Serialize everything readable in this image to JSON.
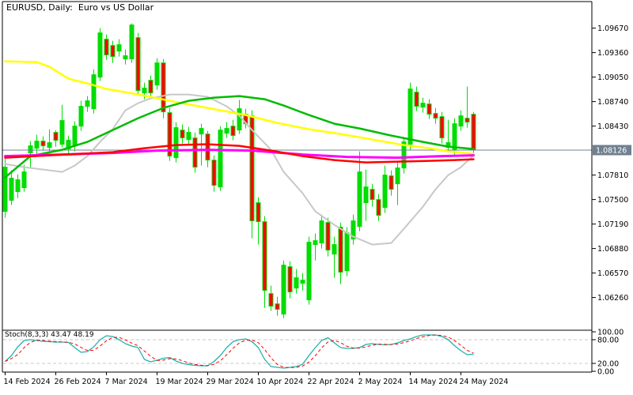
{
  "window": {
    "title": "EURUSD, Daily:  Euro vs US Dollar"
  },
  "colors": {
    "background": "#ffffff",
    "frame": "#000000",
    "bull_candle": "#00DD00",
    "bear_fill": "#FF0000",
    "candle_border": "#00DD00",
    "ma_yellow": "#FFFF00",
    "ma_green": "#00BB00",
    "ma_gray": "#C8C8C8",
    "ma_magenta": "#FF00FF",
    "ma_red": "#FF0000",
    "current_price_line": "#708090",
    "price_box_bg": "#708090",
    "price_box_text": "#FFFFFF",
    "stoch_k": "#20B2AA",
    "stoch_d": "#FF0000",
    "stoch_level_dash": "#C8C8C8",
    "axis_text": "#000000"
  },
  "chart_data": {
    "type": "candlestick",
    "symbol": "EURUSD",
    "timeframe": "Daily",
    "description": "Euro vs US Dollar",
    "current_price": 1.08126,
    "current_price_label": "1.08126",
    "ylim": [
      1.06,
      1.0975
    ],
    "price_axis_ticks": [
      {
        "label": "1.09670",
        "price": 1.0967
      },
      {
        "label": "1.09360",
        "price": 1.0936
      },
      {
        "label": "1.09050",
        "price": 1.0905
      },
      {
        "label": "1.08740",
        "price": 1.0874
      },
      {
        "label": "1.08430",
        "price": 1.0843
      },
      {
        "label": "1.07810",
        "price": 1.0781
      },
      {
        "label": "1.07500",
        "price": 1.075
      },
      {
        "label": "1.07190",
        "price": 1.0719
      },
      {
        "label": "1.06880",
        "price": 1.0688
      },
      {
        "label": "1.06570",
        "price": 1.0657
      },
      {
        "label": "1.06260",
        "price": 1.0626
      }
    ],
    "date_axis_ticks": [
      {
        "label": "14 Feb 2024",
        "candle": 0
      },
      {
        "label": "26 Feb 2024",
        "candle": 8
      },
      {
        "label": "7 Mar 2024",
        "candle": 16
      },
      {
        "label": "19 Mar 2024",
        "candle": 24
      },
      {
        "label": "29 Mar 2024",
        "candle": 32
      },
      {
        "label": "10 Apr 2024",
        "candle": 40
      },
      {
        "label": "22 Apr 2024",
        "candle": 48
      },
      {
        "label": "2 May 2024",
        "candle": 56
      },
      {
        "label": "14 May 2024",
        "candle": 64
      },
      {
        "label": "24 May 2024",
        "candle": 72
      }
    ],
    "candles": [
      [
        1.0735,
        1.0803,
        1.0727,
        1.0791
      ],
      [
        1.0749,
        1.0787,
        1.0743,
        1.0777
      ],
      [
        1.076,
        1.0782,
        1.0752,
        1.0775
      ],
      [
        1.0765,
        1.0794,
        1.076,
        1.0785
      ],
      [
        1.0809,
        1.0824,
        1.079,
        1.0818
      ],
      [
        1.0815,
        1.0832,
        1.0807,
        1.0824
      ],
      [
        1.0824,
        1.083,
        1.0812,
        1.0818
      ],
      [
        1.0816,
        1.0839,
        1.0805,
        1.0822
      ],
      [
        1.0835,
        1.0838,
        1.0817,
        1.0825
      ],
      [
        1.082,
        1.087,
        1.0816,
        1.085
      ],
      [
        1.0814,
        1.0831,
        1.0807,
        1.0825
      ],
      [
        1.0818,
        1.0849,
        1.0811,
        1.0843
      ],
      [
        1.0843,
        1.0875,
        1.0837,
        1.0868
      ],
      [
        1.0868,
        1.0881,
        1.0861,
        1.0875
      ],
      [
        1.0865,
        1.0915,
        1.0859,
        1.0908
      ],
      [
        1.0905,
        1.0967,
        1.09,
        1.0961
      ],
      [
        1.0953,
        1.0959,
        1.0927,
        1.0933
      ],
      [
        1.0945,
        1.0951,
        1.0923,
        1.0931
      ],
      [
        1.0938,
        1.0953,
        1.0931,
        1.0946
      ],
      [
        1.0928,
        1.094,
        1.0921,
        1.0932
      ],
      [
        1.0928,
        1.0973,
        1.0923,
        1.0971
      ],
      [
        1.0955,
        1.0961,
        1.0883,
        1.0888
      ],
      [
        1.0885,
        1.0898,
        1.0877,
        1.0891
      ],
      [
        1.0901,
        1.0907,
        1.0879,
        1.0885
      ],
      [
        1.0895,
        1.0929,
        1.0889,
        1.0923
      ],
      [
        1.0923,
        1.0928,
        1.0853,
        1.0861
      ],
      [
        1.086,
        1.0866,
        1.0799,
        1.0805
      ],
      [
        1.0803,
        1.0848,
        1.0797,
        1.0841
      ],
      [
        1.0838,
        1.0845,
        1.0821,
        1.0828
      ],
      [
        1.0826,
        1.0842,
        1.0819,
        1.0835
      ],
      [
        1.0828,
        1.0835,
        1.0784,
        1.0791
      ],
      [
        1.0833,
        1.0846,
        1.0793,
        1.084
      ],
      [
        1.0833,
        1.0837,
        1.0791,
        1.08
      ],
      [
        1.08,
        1.0806,
        1.076,
        1.0768
      ],
      [
        1.0766,
        1.0843,
        1.0761,
        1.0838
      ],
      [
        1.0834,
        1.0848,
        1.0828,
        1.084
      ],
      [
        1.0843,
        1.0851,
        1.0825,
        1.0831
      ],
      [
        1.0838,
        1.0876,
        1.0833,
        1.0865
      ],
      [
        1.0858,
        1.0865,
        1.084,
        1.0846
      ],
      [
        1.0856,
        1.0863,
        1.0701,
        1.0723
      ],
      [
        1.0746,
        1.0753,
        1.0693,
        1.0722
      ],
      [
        1.0722,
        1.0729,
        1.0613,
        1.0635
      ],
      [
        1.0631,
        1.0641,
        1.0609,
        1.0615
      ],
      [
        1.0618,
        1.0627,
        1.0603,
        1.0611
      ],
      [
        1.0605,
        1.0673,
        1.06,
        1.0667
      ],
      [
        1.0665,
        1.0672,
        1.0625,
        1.0633
      ],
      [
        1.0638,
        1.0662,
        1.0631,
        1.0651
      ],
      [
        1.0644,
        1.0657,
        1.0635,
        1.0648
      ],
      [
        1.0623,
        1.0703,
        1.0617,
        1.0696
      ],
      [
        1.0693,
        1.0707,
        1.0673,
        1.0698
      ],
      [
        1.0695,
        1.0731,
        1.0688,
        1.0723
      ],
      [
        1.0721,
        1.0727,
        1.0678,
        1.0686
      ],
      [
        1.0681,
        1.0703,
        1.0651,
        1.0693
      ],
      [
        1.0715,
        1.0721,
        1.0643,
        1.0658
      ],
      [
        1.066,
        1.0715,
        1.0653,
        1.0708
      ],
      [
        1.07,
        1.0731,
        1.0693,
        1.0723
      ],
      [
        1.0716,
        1.0811,
        1.071,
        1.0785
      ],
      [
        1.0746,
        1.0788,
        1.0723,
        1.0766
      ],
      [
        1.0763,
        1.077,
        1.0741,
        1.075
      ],
      [
        1.075,
        1.0757,
        1.0723,
        1.073
      ],
      [
        1.074,
        1.0793,
        1.0733,
        1.0781
      ],
      [
        1.078,
        1.0787,
        1.0755,
        1.0763
      ],
      [
        1.077,
        1.0797,
        1.0743,
        1.079
      ],
      [
        1.079,
        1.0829,
        1.0783,
        1.0823
      ],
      [
        1.082,
        1.0898,
        1.0813,
        1.089
      ],
      [
        1.0886,
        1.0893,
        1.0862,
        1.0868
      ],
      [
        1.0867,
        1.0879,
        1.086,
        1.0872
      ],
      [
        1.0871,
        1.0877,
        1.0852,
        1.0858
      ],
      [
        1.0859,
        1.0866,
        1.0846,
        1.0853
      ],
      [
        1.0855,
        1.0861,
        1.0821,
        1.0828
      ],
      [
        1.0816,
        1.0851,
        1.081,
        1.0822
      ],
      [
        1.0813,
        1.0853,
        1.0807,
        1.0846
      ],
      [
        1.0843,
        1.0863,
        1.0837,
        1.0856
      ],
      [
        1.0853,
        1.0893,
        1.0841,
        1.0848
      ],
      [
        1.0858,
        1.0861,
        1.0809,
        1.08126
      ]
    ],
    "overlays": [
      {
        "name": "ma-gray",
        "color": "#C8C8C8",
        "width": 2,
        "points": [
          [
            0,
            1.0795
          ],
          [
            3,
            1.0791
          ],
          [
            7,
            1.0787
          ],
          [
            9,
            1.0785
          ],
          [
            11,
            1.0793
          ],
          [
            13,
            1.0805
          ],
          [
            15,
            1.0823
          ],
          [
            17,
            1.0839
          ],
          [
            19,
            1.0863
          ],
          [
            21,
            1.0872
          ],
          [
            23,
            1.0878
          ],
          [
            26,
            1.0883
          ],
          [
            29,
            1.0883
          ],
          [
            32,
            1.088
          ],
          [
            33,
            1.0876
          ],
          [
            35,
            1.0868
          ],
          [
            37,
            1.0856
          ],
          [
            39,
            1.0838
          ],
          [
            42,
            1.0813
          ],
          [
            44,
            1.0785
          ],
          [
            47,
            1.0758
          ],
          [
            49,
            1.0735
          ],
          [
            52,
            1.0718
          ],
          [
            55,
            1.0703
          ],
          [
            58,
            1.0693
          ],
          [
            61,
            1.0695
          ],
          [
            63,
            1.0713
          ],
          [
            66,
            1.0741
          ],
          [
            68,
            1.0763
          ],
          [
            70,
            1.0781
          ],
          [
            72,
            1.0791
          ],
          [
            74,
            1.0806
          ]
        ]
      },
      {
        "name": "ma-yellow",
        "color": "#FFFF00",
        "width": 2.5,
        "points": [
          [
            0,
            1.0925
          ],
          [
            5,
            1.0924
          ],
          [
            7,
            1.0918
          ],
          [
            10,
            1.0903
          ],
          [
            13,
            1.0897
          ],
          [
            16,
            1.089
          ],
          [
            19,
            1.0886
          ],
          [
            23,
            1.088
          ],
          [
            26,
            1.0875
          ],
          [
            30,
            1.0869
          ],
          [
            34,
            1.0863
          ],
          [
            38,
            1.0857
          ],
          [
            43,
            1.0847
          ],
          [
            48,
            1.0839
          ],
          [
            53,
            1.0833
          ],
          [
            58,
            1.0826
          ],
          [
            63,
            1.0819
          ],
          [
            67,
            1.0815
          ],
          [
            70,
            1.0811
          ],
          [
            74,
            1.0808
          ]
        ]
      },
      {
        "name": "ma-green",
        "color": "#00BB00",
        "width": 2.5,
        "points": [
          [
            0,
            1.0778
          ],
          [
            4,
            1.0805
          ],
          [
            9,
            1.0813
          ],
          [
            13,
            1.0823
          ],
          [
            17,
            1.0838
          ],
          [
            21,
            1.0853
          ],
          [
            25,
            1.0866
          ],
          [
            29,
            1.0875
          ],
          [
            33,
            1.0879
          ],
          [
            37,
            1.0881
          ],
          [
            41,
            1.0877
          ],
          [
            44,
            1.0869
          ],
          [
            48,
            1.0857
          ],
          [
            52,
            1.0846
          ],
          [
            56,
            1.084
          ],
          [
            61,
            1.0831
          ],
          [
            66,
            1.0823
          ],
          [
            70,
            1.0817
          ],
          [
            74,
            1.0814
          ]
        ]
      },
      {
        "name": "ma-magenta",
        "color": "#FF00FF",
        "width": 3,
        "points": [
          [
            0,
            1.0805
          ],
          [
            9,
            1.0807
          ],
          [
            17,
            1.0809
          ],
          [
            24,
            1.0812
          ],
          [
            32,
            1.0813
          ],
          [
            39,
            1.0812
          ],
          [
            47,
            1.0807
          ],
          [
            54,
            1.0804
          ],
          [
            62,
            1.0803
          ],
          [
            69,
            1.0805
          ],
          [
            74,
            1.0806
          ]
        ]
      },
      {
        "name": "ma-red",
        "color": "#FF0000",
        "width": 2.5,
        "points": [
          [
            0,
            1.0803
          ],
          [
            7,
            1.0806
          ],
          [
            12,
            1.0808
          ],
          [
            17,
            1.081
          ],
          [
            22,
            1.0815
          ],
          [
            27,
            1.0819
          ],
          [
            32,
            1.082
          ],
          [
            37,
            1.0818
          ],
          [
            42,
            1.0812
          ],
          [
            47,
            1.0805
          ],
          [
            52,
            1.08
          ],
          [
            57,
            1.0797
          ],
          [
            62,
            1.0798
          ],
          [
            67,
            1.0799
          ],
          [
            71,
            1.08
          ],
          [
            74,
            1.0801
          ]
        ]
      }
    ],
    "indicator": {
      "name": "Stoch(8,3,3)",
      "k_value": "43.47",
      "d_value": "48.19",
      "label_full": "Stoch(8,3,3) 43.47 48.19",
      "ylim": [
        0,
        100
      ],
      "levels": [
        100,
        80,
        20,
        0
      ],
      "level_labels": [
        "100.00",
        "80.00",
        "20.00",
        "0.00"
      ],
      "dashed_levels": [
        80,
        20
      ],
      "k": [
        25,
        40,
        62,
        78,
        80,
        78,
        76,
        75,
        74,
        74,
        73,
        60,
        48,
        50,
        62,
        80,
        90,
        88,
        80,
        70,
        64,
        60,
        30,
        24,
        28,
        33,
        35,
        26,
        20,
        17,
        15,
        14,
        14,
        25,
        40,
        60,
        75,
        80,
        82,
        75,
        60,
        30,
        12,
        10,
        8,
        10,
        12,
        18,
        40,
        60,
        78,
        85,
        72,
        60,
        58,
        58,
        60,
        68,
        70,
        68,
        67,
        68,
        72,
        78,
        82,
        88,
        92,
        92,
        92,
        88,
        80,
        65,
        52,
        42,
        43.47
      ]
    }
  }
}
